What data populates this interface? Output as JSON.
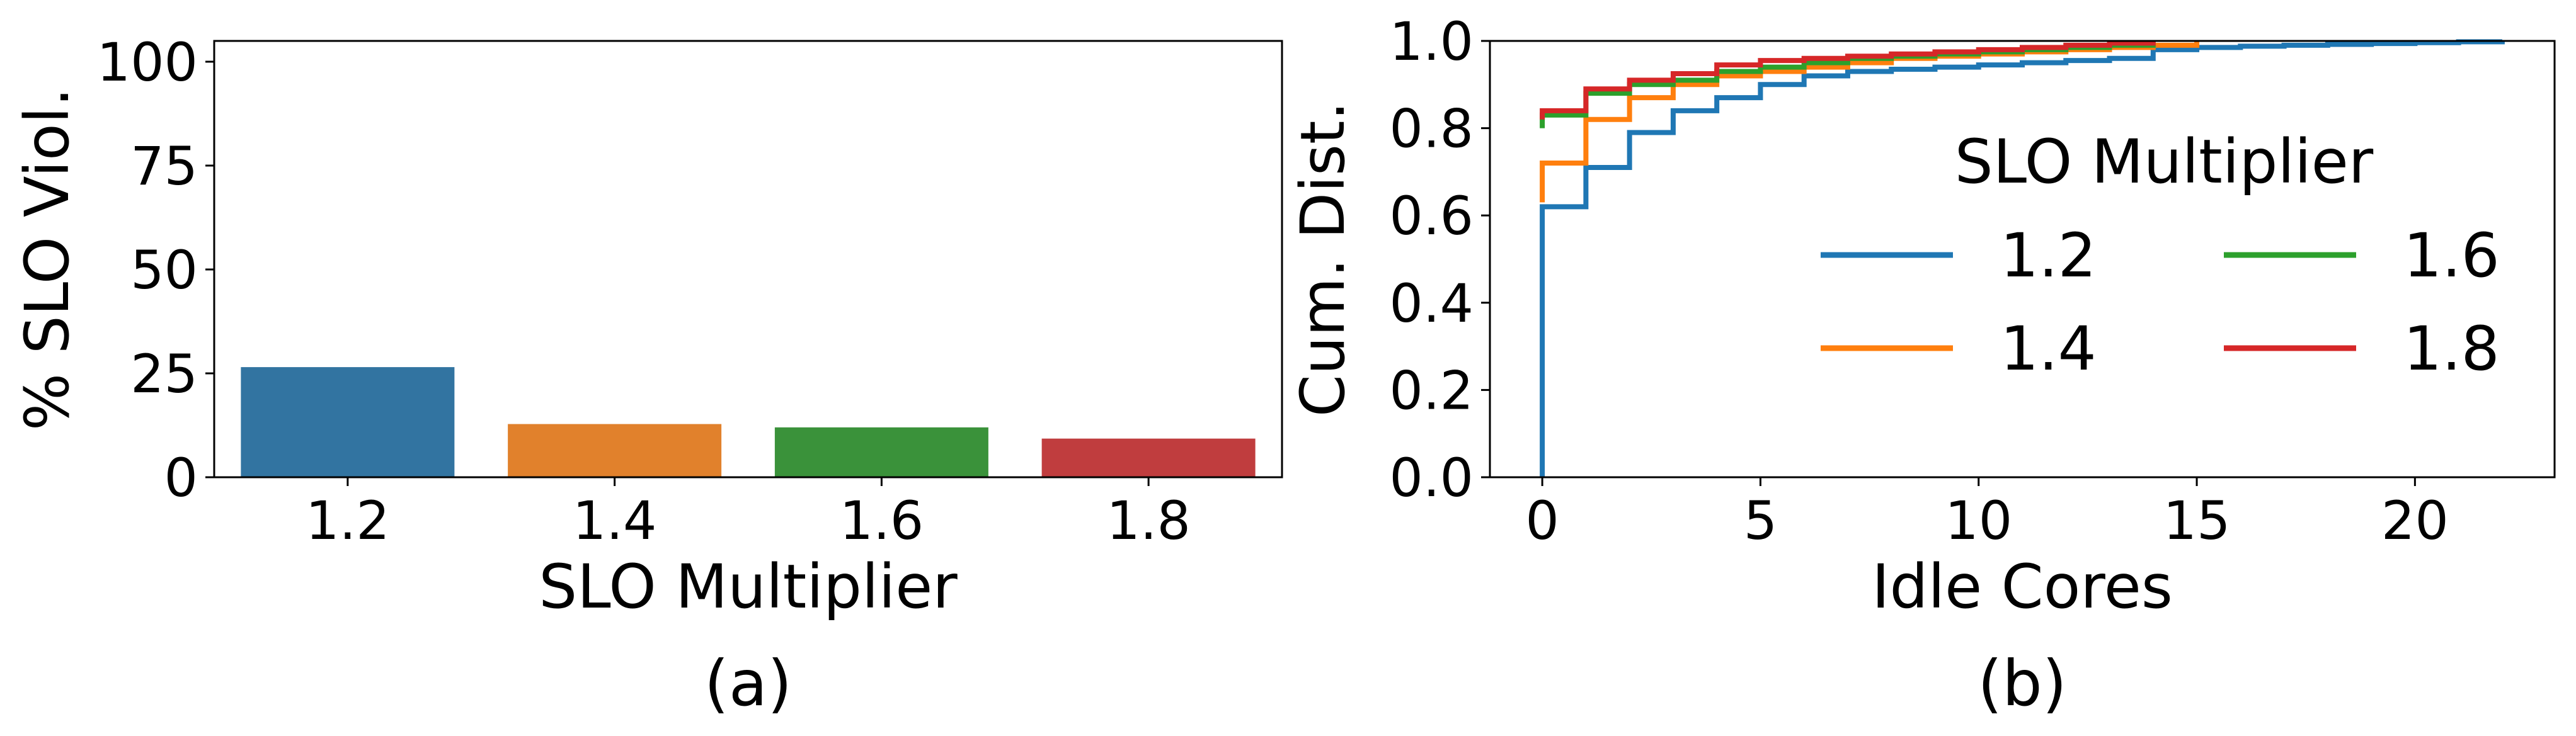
{
  "chart_data": [
    {
      "type": "bar",
      "caption": "(a)",
      "xlabel": "SLO Multiplier",
      "ylabel": "% SLO Viol.",
      "categories": [
        "1.2",
        "1.4",
        "1.6",
        "1.8"
      ],
      "values": [
        26.5,
        12.8,
        12.0,
        9.3
      ],
      "colors": [
        "#3274a1",
        "#e1812c",
        "#3a923a",
        "#c03d3e"
      ],
      "ylim": [
        0,
        105
      ],
      "yticks": [
        0,
        25,
        50,
        75,
        100
      ],
      "ytick_labels": [
        "0",
        "25",
        "50",
        "75",
        "100"
      ],
      "grid": false
    },
    {
      "type": "line",
      "subtype": "step-cdf",
      "caption": "(b)",
      "xlabel": "Idle Cores",
      "ylabel": "Cum. Dist.",
      "xlim": [
        -1.2,
        23.2
      ],
      "ylim": [
        0,
        1.0
      ],
      "xticks": [
        0,
        5,
        10,
        15,
        20
      ],
      "xtick_labels": [
        "0",
        "5",
        "10",
        "15",
        "20"
      ],
      "yticks": [
        0.0,
        0.2,
        0.4,
        0.6,
        0.8,
        1.0
      ],
      "ytick_labels": [
        "0.0",
        "0.2",
        "0.4",
        "0.6",
        "0.8",
        "1.0"
      ],
      "legend": {
        "title": "SLO Multiplier",
        "placement": "center-right",
        "columns": 2
      },
      "grid": false,
      "series": [
        {
          "name": "1.2",
          "color": "#1f77b4",
          "x": [
            0,
            0,
            1,
            2,
            3,
            4,
            5,
            6,
            7,
            8,
            9,
            10,
            11,
            12,
            13,
            14,
            15,
            16,
            17,
            18,
            19,
            20,
            21,
            22
          ],
          "y": [
            0,
            0.62,
            0.71,
            0.79,
            0.84,
            0.87,
            0.9,
            0.92,
            0.93,
            0.935,
            0.94,
            0.945,
            0.95,
            0.955,
            0.96,
            0.98,
            0.985,
            0.988,
            0.99,
            0.992,
            0.994,
            0.996,
            0.998,
            1.0
          ]
        },
        {
          "name": "1.4",
          "color": "#ff7f0e",
          "x": [
            0,
            0,
            1,
            2,
            3,
            4,
            5,
            6,
            7,
            8,
            9,
            10,
            11,
            12,
            13,
            14,
            15
          ],
          "y": [
            0.63,
            0.72,
            0.82,
            0.87,
            0.9,
            0.92,
            0.93,
            0.94,
            0.95,
            0.96,
            0.965,
            0.97,
            0.975,
            0.98,
            0.985,
            0.99,
            1.0
          ]
        },
        {
          "name": "1.6",
          "color": "#2ca02c",
          "x": [
            0,
            0,
            1,
            2,
            3,
            4,
            5,
            6,
            7,
            8,
            9,
            10,
            11,
            12,
            13,
            14
          ],
          "y": [
            0.8,
            0.83,
            0.88,
            0.9,
            0.91,
            0.93,
            0.94,
            0.95,
            0.96,
            0.965,
            0.97,
            0.975,
            0.98,
            0.985,
            0.99,
            1.0
          ]
        },
        {
          "name": "1.8",
          "color": "#d62728",
          "x": [
            0,
            0,
            1,
            2,
            3,
            4,
            5,
            6,
            7,
            8,
            9,
            10,
            11,
            12,
            13,
            14
          ],
          "y": [
            0.82,
            0.84,
            0.89,
            0.91,
            0.925,
            0.945,
            0.955,
            0.96,
            0.965,
            0.97,
            0.975,
            0.98,
            0.985,
            0.99,
            0.995,
            1.0
          ]
        }
      ]
    }
  ]
}
